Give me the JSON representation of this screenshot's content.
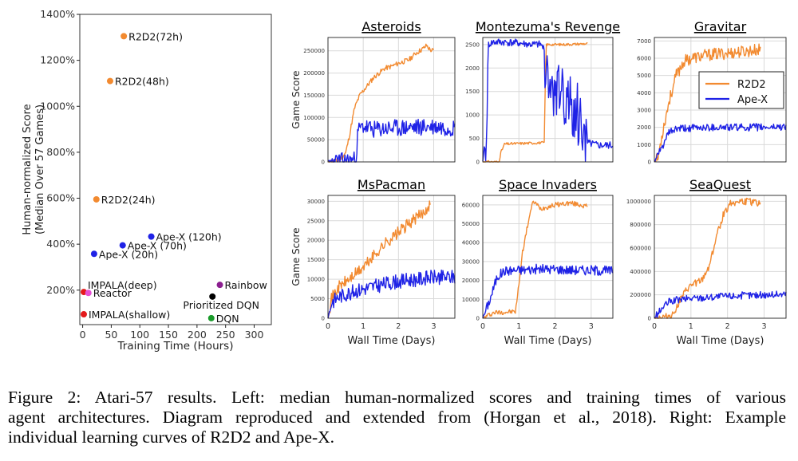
{
  "colors": {
    "r2d2": "#f28a30",
    "apex": "#1f22e6",
    "red": "#e41a1c",
    "pink": "#e64fd6",
    "purple": "#8b1e8f",
    "black": "#000000",
    "green": "#1a9b2a",
    "orange_pt": "#f28a30",
    "blue_pt": "#1f22e6"
  },
  "chart_data": [
    {
      "type": "scatter",
      "title": "",
      "xlabel": "Training Time (Hours)",
      "ylabel": [
        "Human-normalized Score",
        "(Median Over 57 Games)"
      ],
      "xlim": [
        -5,
        330
      ],
      "ylim": [
        50,
        1400
      ],
      "x_ticks": [
        0,
        50,
        100,
        150,
        200,
        250,
        300
      ],
      "x_tick_labels": [
        "0",
        "50",
        "100",
        "150",
        "200",
        "250",
        "300"
      ],
      "y_ticks": [
        200,
        400,
        600,
        800,
        1000,
        1200,
        1400
      ],
      "y_tick_labels": [
        "200%",
        "400%",
        "600%",
        "800%",
        "1000%",
        "1200%",
        "1400%"
      ],
      "points": [
        {
          "label": "R2D2(72h)",
          "x": 72,
          "y": 1305,
          "color": "#f28a30",
          "anchor": "right"
        },
        {
          "label": "R2D2(48h)",
          "x": 48,
          "y": 1110,
          "color": "#f28a30",
          "anchor": "right"
        },
        {
          "label": "R2D2(24h)",
          "x": 24,
          "y": 595,
          "color": "#f28a30",
          "anchor": "right"
        },
        {
          "label": "Ape-X (120h)",
          "x": 120,
          "y": 433,
          "color": "#1f22e6",
          "anchor": "right"
        },
        {
          "label": "Ape-X (70h)",
          "x": 70,
          "y": 395,
          "color": "#1f22e6",
          "anchor": "right"
        },
        {
          "label": "Ape-X (20h)",
          "x": 20,
          "y": 358,
          "color": "#1f22e6",
          "anchor": "right"
        },
        {
          "label": "IMPALA(deep)",
          "x": 2,
          "y": 192,
          "color": "#e41a1c",
          "anchor": "upright"
        },
        {
          "label": "Reactor",
          "x": 10,
          "y": 188,
          "color": "#e64fd6",
          "anchor": "right"
        },
        {
          "label": "Rainbow",
          "x": 240,
          "y": 223,
          "color": "#8b1e8f",
          "anchor": "right"
        },
        {
          "label": "Prioritized DQN",
          "x": 227,
          "y": 172,
          "color": "#000000",
          "anchor": "below"
        },
        {
          "label": "IMPALA(shallow)",
          "x": 2,
          "y": 95,
          "color": "#e41a1c",
          "anchor": "right"
        },
        {
          "label": "DQN",
          "x": 225,
          "y": 78,
          "color": "#1a9b2a",
          "anchor": "right"
        }
      ]
    },
    {
      "type": "line",
      "title": "Asteroids",
      "xlim": [
        0,
        3.6
      ],
      "ylim": [
        0,
        280000
      ],
      "x_ticks": [
        0,
        1,
        2,
        3
      ],
      "x_tick_labels": [],
      "y_ticks": [
        0,
        50000,
        100000,
        150000,
        200000,
        250000
      ],
      "y_tick_labels": [
        "0",
        "50000",
        "100000",
        "150000",
        "200000",
        "250000"
      ],
      "ylabel": "Game Score",
      "xlabel": "",
      "series": [
        {
          "name": "R2D2",
          "color": "#f28a30",
          "noise": 0.02,
          "seed": 11,
          "points": [
            [
              0,
              0
            ],
            [
              0.3,
              3000
            ],
            [
              0.5,
              20000
            ],
            [
              0.6,
              55000
            ],
            [
              0.75,
              120000
            ],
            [
              0.9,
              150000
            ],
            [
              1.0,
              160000
            ],
            [
              1.3,
              190000
            ],
            [
              1.6,
              210000
            ],
            [
              1.8,
              215000
            ],
            [
              2.0,
              222000
            ],
            [
              2.3,
              230000
            ],
            [
              2.5,
              245000
            ],
            [
              2.7,
              255000
            ],
            [
              2.8,
              262000
            ],
            [
              2.9,
              252000
            ],
            [
              3.0,
              250000
            ]
          ]
        },
        {
          "name": "Ape-X",
          "color": "#1f22e6",
          "noise": 0.07,
          "seed": 23,
          "points": [
            [
              0,
              0
            ],
            [
              0.6,
              3000
            ],
            [
              0.8,
              5000
            ],
            [
              0.85,
              70000
            ],
            [
              1.0,
              80000
            ],
            [
              1.3,
              72000
            ],
            [
              1.6,
              75000
            ],
            [
              2.0,
              76000
            ],
            [
              2.5,
              78000
            ],
            [
              3.0,
              80000
            ],
            [
              3.3,
              78000
            ],
            [
              3.6,
              77000
            ]
          ]
        }
      ]
    },
    {
      "type": "line",
      "title": "Montezuma's Revenge",
      "xlim": [
        0,
        3.6
      ],
      "ylim": [
        0,
        2650
      ],
      "x_ticks": [
        0,
        1,
        2,
        3
      ],
      "x_tick_labels": [],
      "y_ticks": [
        0,
        500,
        1000,
        1500,
        2000,
        2500
      ],
      "y_tick_labels": [
        "0",
        "500",
        "1000",
        "1500",
        "2000",
        "2500"
      ],
      "ylabel": "",
      "xlabel": "",
      "series": [
        {
          "name": "R2D2",
          "color": "#f28a30",
          "noise": 0.01,
          "seed": 31,
          "points": [
            [
              0,
              0
            ],
            [
              0.45,
              0
            ],
            [
              0.5,
              200
            ],
            [
              0.6,
              380
            ],
            [
              0.9,
              390
            ],
            [
              1.3,
              400
            ],
            [
              1.7,
              410
            ],
            [
              1.75,
              2500
            ],
            [
              2.2,
              2500
            ],
            [
              2.6,
              2510
            ],
            [
              2.9,
              2520
            ]
          ]
        },
        {
          "name": "Ape-X",
          "color": "#1f22e6",
          "noise": 0.03,
          "seed": 41,
          "spiky": [
            1.7,
            2.85
          ],
          "points": [
            [
              0,
              0
            ],
            [
              0.05,
              400
            ],
            [
              0.08,
              0
            ],
            [
              0.12,
              1000
            ],
            [
              0.15,
              2500
            ],
            [
              0.3,
              2550
            ],
            [
              0.6,
              2550
            ],
            [
              1.0,
              2530
            ],
            [
              1.3,
              2500
            ],
            [
              1.6,
              2500
            ],
            [
              1.7,
              2400
            ],
            [
              2.0,
              2300
            ],
            [
              2.4,
              2000
            ],
            [
              2.8,
              1500
            ],
            [
              2.9,
              400
            ],
            [
              3.2,
              350
            ],
            [
              3.6,
              350
            ]
          ]
        }
      ]
    },
    {
      "type": "line",
      "title": "Gravitar",
      "xlim": [
        0,
        3.6
      ],
      "ylim": [
        0,
        7200
      ],
      "x_ticks": [
        0,
        1,
        2,
        3
      ],
      "x_tick_labels": [],
      "y_ticks": [
        0,
        1000,
        2000,
        3000,
        4000,
        5000,
        6000,
        7000
      ],
      "y_tick_labels": [
        "0",
        "1000",
        "2000",
        "3000",
        "4000",
        "5000",
        "6000",
        "7000"
      ],
      "ylabel": "",
      "xlabel": "",
      "legend": [
        "R2D2",
        "Ape-X"
      ],
      "series": [
        {
          "name": "R2D2",
          "color": "#f28a30",
          "noise": 0.05,
          "seed": 53,
          "points": [
            [
              0,
              0
            ],
            [
              0.1,
              200
            ],
            [
              0.2,
              1500
            ],
            [
              0.4,
              3500
            ],
            [
              0.6,
              5000
            ],
            [
              0.8,
              5800
            ],
            [
              1.0,
              6000
            ],
            [
              1.5,
              6200
            ],
            [
              2.0,
              6300
            ],
            [
              2.5,
              6400
            ],
            [
              2.9,
              6500
            ]
          ]
        },
        {
          "name": "Ape-X",
          "color": "#1f22e6",
          "noise": 0.03,
          "seed": 61,
          "points": [
            [
              0,
              0
            ],
            [
              0.2,
              800
            ],
            [
              0.4,
              1700
            ],
            [
              0.6,
              1900
            ],
            [
              1.0,
              1950
            ],
            [
              1.5,
              2000
            ],
            [
              2.0,
              2000
            ],
            [
              2.5,
              2000
            ],
            [
              3.0,
              2000
            ],
            [
              3.6,
              2050
            ]
          ]
        }
      ]
    },
    {
      "type": "line",
      "title": "MsPacman",
      "xlim": [
        0,
        3.6
      ],
      "ylim": [
        0,
        31500
      ],
      "x_ticks": [
        0,
        1,
        2,
        3
      ],
      "x_tick_labels": [
        "0",
        "1",
        "2",
        "3"
      ],
      "y_ticks": [
        0,
        5000,
        10000,
        15000,
        20000,
        25000,
        30000
      ],
      "y_tick_labels": [
        "0",
        "5000",
        "10000",
        "15000",
        "20000",
        "25000",
        "30000"
      ],
      "ylabel": "Game Score",
      "xlabel": "Wall Time (Days)",
      "series": [
        {
          "name": "R2D2",
          "color": "#f28a30",
          "noise": 0.05,
          "seed": 71,
          "points": [
            [
              0,
              0
            ],
            [
              0.1,
              5000
            ],
            [
              0.3,
              8000
            ],
            [
              0.6,
              10000
            ],
            [
              1.0,
              13000
            ],
            [
              1.3,
              16000
            ],
            [
              1.6,
              19000
            ],
            [
              2.0,
              22000
            ],
            [
              2.4,
              25000
            ],
            [
              2.7,
              27000
            ],
            [
              2.9,
              29500
            ]
          ]
        },
        {
          "name": "Ape-X",
          "color": "#1f22e6",
          "noise": 0.06,
          "seed": 83,
          "points": [
            [
              0,
              0
            ],
            [
              0.1,
              4000
            ],
            [
              0.3,
              5500
            ],
            [
              0.6,
              6500
            ],
            [
              1.0,
              7500
            ],
            [
              1.5,
              8500
            ],
            [
              2.0,
              9500
            ],
            [
              2.5,
              10000
            ],
            [
              3.0,
              10500
            ],
            [
              3.6,
              10500
            ]
          ]
        }
      ]
    },
    {
      "type": "line",
      "title": "Space Invaders",
      "xlim": [
        0,
        3.6
      ],
      "ylim": [
        0,
        65000
      ],
      "x_ticks": [
        0,
        1,
        2,
        3
      ],
      "x_tick_labels": [
        "0",
        "1",
        "2",
        "3"
      ],
      "y_ticks": [
        0,
        10000,
        20000,
        30000,
        40000,
        50000,
        60000
      ],
      "y_tick_labels": [
        "0",
        "10000",
        "20000",
        "30000",
        "40000",
        "50000",
        "60000"
      ],
      "ylabel": "",
      "xlabel": "Wall Time (Days)",
      "series": [
        {
          "name": "R2D2",
          "color": "#f28a30",
          "noise": 0.02,
          "seed": 97,
          "points": [
            [
              0,
              0
            ],
            [
              0.2,
              2000
            ],
            [
              0.3,
              3000
            ],
            [
              0.9,
              3500
            ],
            [
              0.95,
              10000
            ],
            [
              1.1,
              35000
            ],
            [
              1.3,
              55000
            ],
            [
              1.4,
              62000
            ],
            [
              1.6,
              58000
            ],
            [
              2.0,
              60000
            ],
            [
              2.4,
              61000
            ],
            [
              2.7,
              60000
            ],
            [
              2.9,
              59000
            ]
          ]
        },
        {
          "name": "Ape-X",
          "color": "#1f22e6",
          "noise": 0.04,
          "seed": 101,
          "points": [
            [
              0,
              0
            ],
            [
              0.2,
              10000
            ],
            [
              0.4,
              22000
            ],
            [
              0.6,
              25000
            ],
            [
              1.0,
              25500
            ],
            [
              1.5,
              26000
            ],
            [
              2.0,
              26000
            ],
            [
              2.5,
              25500
            ],
            [
              3.0,
              25500
            ],
            [
              3.6,
              25000
            ]
          ]
        }
      ]
    },
    {
      "type": "line",
      "title": "SeaQuest",
      "xlim": [
        0,
        3.6
      ],
      "ylim": [
        0,
        1050000
      ],
      "x_ticks": [
        0,
        1,
        2,
        3
      ],
      "x_tick_labels": [
        "0",
        "1",
        "2",
        "3"
      ],
      "y_ticks": [
        0,
        200000,
        400000,
        600000,
        800000,
        1000000
      ],
      "y_tick_labels": [
        "0",
        "200000",
        "400000",
        "600000",
        "800000",
        "1000000"
      ],
      "ylabel": "",
      "xlabel": "Wall Time (Days)",
      "series": [
        {
          "name": "R2D2",
          "color": "#f28a30",
          "noise": 0.03,
          "seed": 113,
          "points": [
            [
              0,
              0
            ],
            [
              0.3,
              10000
            ],
            [
              0.5,
              30000
            ],
            [
              0.7,
              150000
            ],
            [
              0.9,
              250000
            ],
            [
              1.1,
              300000
            ],
            [
              1.3,
              320000
            ],
            [
              1.5,
              450000
            ],
            [
              1.7,
              700000
            ],
            [
              1.9,
              900000
            ],
            [
              2.1,
              990000
            ],
            [
              2.4,
              1000000
            ],
            [
              2.7,
              990000
            ],
            [
              2.9,
              985000
            ]
          ]
        },
        {
          "name": "Ape-X",
          "color": "#1f22e6",
          "noise": 0.03,
          "seed": 127,
          "points": [
            [
              0,
              0
            ],
            [
              0.2,
              80000
            ],
            [
              0.4,
              140000
            ],
            [
              0.7,
              160000
            ],
            [
              1.0,
              170000
            ],
            [
              1.5,
              180000
            ],
            [
              2.0,
              190000
            ],
            [
              2.5,
              195000
            ],
            [
              3.0,
              200000
            ],
            [
              3.6,
              205000
            ]
          ]
        }
      ]
    }
  ],
  "caption": {
    "lines": [
      "Figure 2:  Atari-57 results.  Left:  median human-normalized scores and training times of various",
      "agent architectures. Diagram reproduced and extended from (Horgan et al., 2018). Right: Example",
      "individual learning curves of R2D2 and Ape-X."
    ]
  }
}
